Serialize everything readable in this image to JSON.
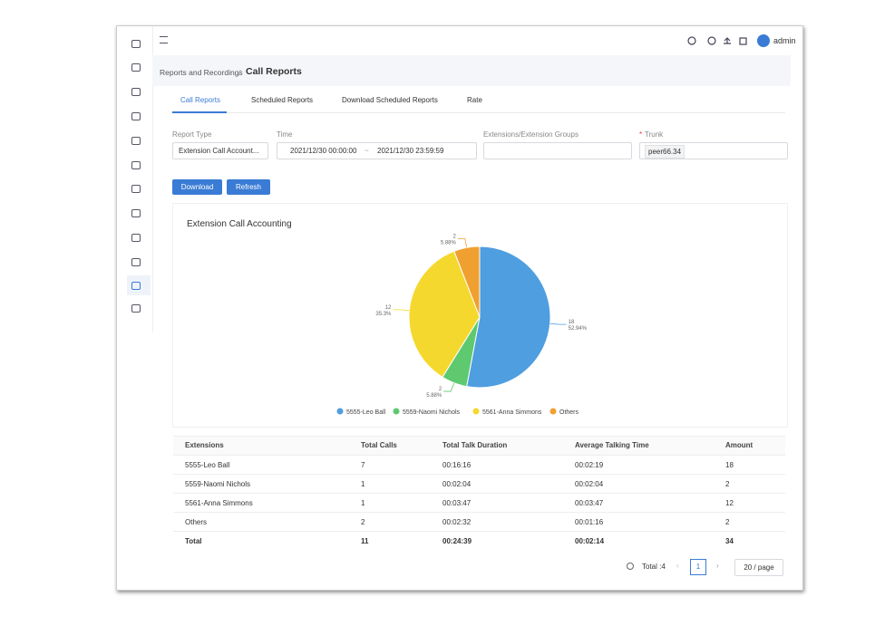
{
  "nav": {
    "breadcrumb": "Reports and Recordings",
    "separator": "/",
    "title": "Call Reports",
    "user": "admin"
  },
  "tabs": [
    "Call Reports",
    "Scheduled Reports",
    "Download Scheduled Reports",
    "Rate"
  ],
  "filters": {
    "report_type_label": "Report Type",
    "report_type": "Extension Call Account...",
    "time_label": "Time",
    "time_start": "2021/12/30 00:00:00",
    "time_sep": "~",
    "time_end": "2021/12/30 23:59:59",
    "ext_label": "Extensions/Extension Groups",
    "trunk_required": "*",
    "trunk_label": "Trunk",
    "trunk_value": "peer66.34"
  },
  "buttons": [
    "Download",
    "Refresh"
  ],
  "chart_data": {
    "type": "pie",
    "title": "Extension Call Accounting",
    "categories": [
      "5555-Leo Ball",
      "5559-Naomi Nichols",
      "5561-Anna Simmons",
      "Others"
    ],
    "values": [
      18,
      2,
      12,
      2
    ],
    "percent_labels": [
      "52.94%",
      "5.88%",
      "35.3%",
      "5.88%"
    ],
    "colors": [
      "#4f9ee0",
      "#5ec96f",
      "#f5d82e",
      "#f0a030"
    ]
  },
  "table": {
    "columns": [
      "Extensions",
      "Total Calls",
      "Total Talk Duration",
      "Average Talking Time",
      "Amount"
    ],
    "rows": [
      [
        "5555-Leo Ball",
        "7",
        "00:16:16",
        "00:02:19",
        "18"
      ],
      [
        "5559-Naomi Nichols",
        "1",
        "00:02:04",
        "00:02:04",
        "2"
      ],
      [
        "5561-Anna Simmons",
        "1",
        "00:03:47",
        "00:03:47",
        "12"
      ],
      [
        "Others",
        "2",
        "00:02:32",
        "00:01:16",
        "2"
      ],
      [
        "Total",
        "11",
        "00:24:39",
        "00:02:14",
        "34"
      ]
    ]
  },
  "pagination": {
    "total": "Total :4",
    "page": "1",
    "page_size": "20 / page"
  }
}
